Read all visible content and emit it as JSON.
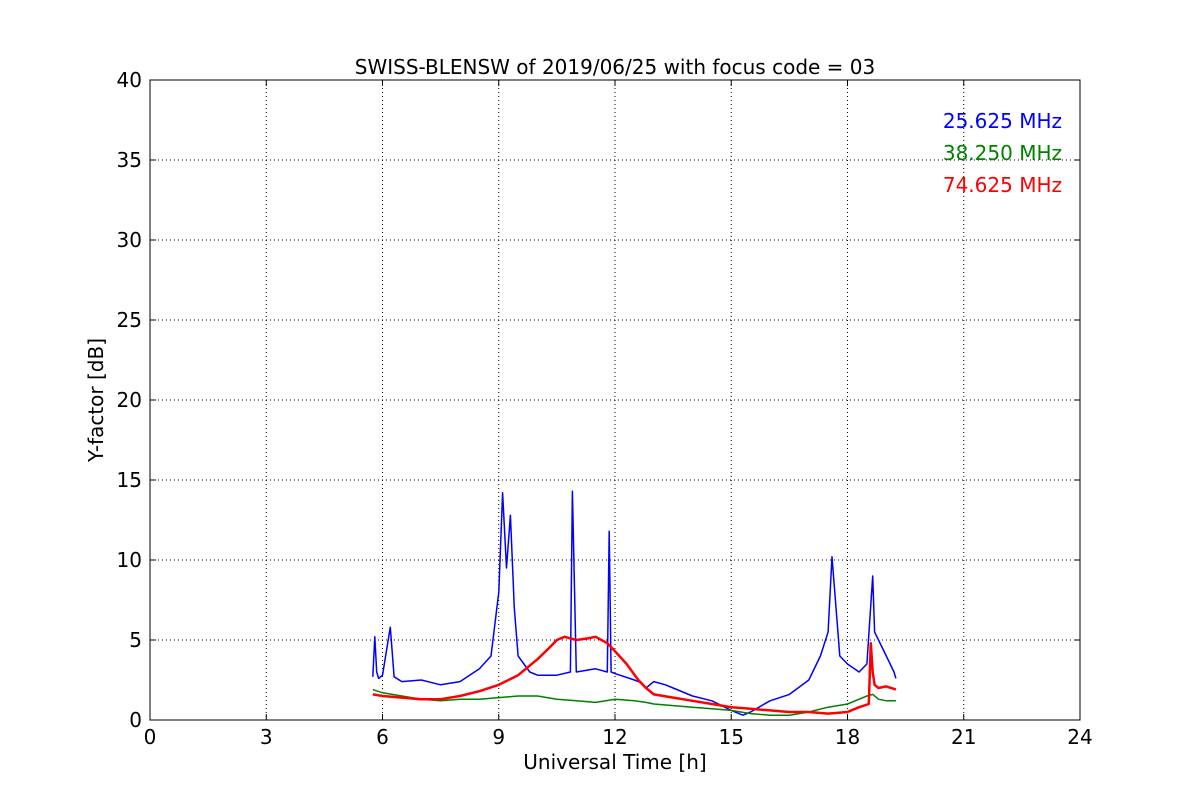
{
  "chart_data": {
    "type": "line",
    "title": "SWISS-BLENSW of 2019/06/25 with focus code = 03",
    "xlabel": "Universal Time [h]",
    "ylabel": "Y-factor [dB]",
    "xlim": [
      0,
      24
    ],
    "ylim": [
      0,
      40
    ],
    "xticks": [
      "0",
      "3",
      "6",
      "9",
      "12",
      "15",
      "18",
      "21",
      "24"
    ],
    "yticks": [
      "0",
      "5",
      "10",
      "15",
      "20",
      "25",
      "30",
      "35",
      "40"
    ],
    "grid": true,
    "legend_position": "top-right",
    "series": [
      {
        "name": "25.625 MHz",
        "color": "#0000ff",
        "x": [
          5.75,
          5.8,
          5.85,
          5.9,
          6.0,
          6.2,
          6.3,
          6.5,
          7.0,
          7.5,
          8.0,
          8.5,
          8.8,
          9.0,
          9.1,
          9.2,
          9.3,
          9.4,
          9.5,
          9.8,
          10.0,
          10.5,
          10.85,
          10.9,
          11.0,
          11.5,
          11.8,
          11.85,
          11.9,
          12.0,
          12.5,
          12.7,
          12.75,
          12.8,
          13.0,
          13.3,
          13.5,
          14.0,
          14.5,
          15.0,
          15.3,
          15.5,
          16.0,
          16.5,
          17.0,
          17.3,
          17.5,
          17.6,
          17.8,
          18.0,
          18.3,
          18.5,
          18.65,
          18.7,
          18.8,
          19.0,
          19.2,
          19.25
        ],
        "y": [
          2.7,
          5.2,
          3.0,
          2.6,
          2.8,
          5.8,
          2.7,
          2.4,
          2.5,
          2.2,
          2.4,
          3.2,
          4.0,
          8.0,
          14.2,
          9.5,
          12.8,
          7.0,
          4.0,
          3.0,
          2.8,
          2.8,
          3.0,
          14.3,
          3.0,
          3.2,
          3.0,
          11.8,
          3.0,
          2.9,
          2.5,
          2.3,
          2.1,
          2.0,
          2.4,
          2.2,
          2.0,
          1.5,
          1.2,
          0.6,
          0.3,
          0.5,
          1.2,
          1.6,
          2.5,
          4.0,
          5.5,
          10.2,
          4.0,
          3.5,
          3.0,
          3.5,
          9.0,
          5.5,
          5.0,
          4.0,
          3.0,
          2.6
        ]
      },
      {
        "name": "38.250 MHz",
        "color": "#008000",
        "x": [
          5.75,
          6.0,
          6.5,
          7.0,
          7.5,
          8.0,
          8.5,
          9.0,
          9.5,
          10.0,
          10.5,
          11.0,
          11.5,
          12.0,
          12.5,
          12.8,
          13.0,
          13.5,
          14.0,
          14.5,
          15.0,
          15.5,
          16.0,
          16.5,
          17.0,
          17.5,
          18.0,
          18.3,
          18.5,
          18.65,
          18.8,
          19.0,
          19.25
        ],
        "y": [
          1.9,
          1.7,
          1.5,
          1.3,
          1.2,
          1.3,
          1.3,
          1.4,
          1.5,
          1.5,
          1.3,
          1.2,
          1.1,
          1.3,
          1.2,
          1.1,
          1.0,
          0.9,
          0.8,
          0.7,
          0.6,
          0.4,
          0.3,
          0.3,
          0.5,
          0.8,
          1.0,
          1.3,
          1.5,
          1.6,
          1.3,
          1.2,
          1.2
        ]
      },
      {
        "name": "74.625 MHz",
        "color": "#ff0000",
        "x": [
          5.75,
          6.0,
          6.5,
          7.0,
          7.5,
          8.0,
          8.5,
          9.0,
          9.5,
          10.0,
          10.3,
          10.5,
          10.7,
          11.0,
          11.3,
          11.5,
          11.8,
          12.0,
          12.3,
          12.6,
          12.8,
          13.0,
          13.5,
          14.0,
          14.5,
          15.0,
          15.5,
          16.0,
          16.5,
          17.0,
          17.5,
          18.0,
          18.3,
          18.55,
          18.6,
          18.65,
          18.7,
          18.8,
          19.0,
          19.25
        ],
        "y": [
          1.6,
          1.5,
          1.4,
          1.3,
          1.3,
          1.5,
          1.8,
          2.2,
          2.8,
          3.8,
          4.5,
          5.0,
          5.2,
          5.0,
          5.1,
          5.2,
          4.8,
          4.3,
          3.5,
          2.5,
          2.0,
          1.6,
          1.4,
          1.2,
          1.0,
          0.8,
          0.7,
          0.6,
          0.5,
          0.5,
          0.4,
          0.5,
          0.8,
          1.0,
          4.8,
          3.0,
          2.2,
          2.0,
          2.1,
          1.9
        ]
      }
    ]
  }
}
